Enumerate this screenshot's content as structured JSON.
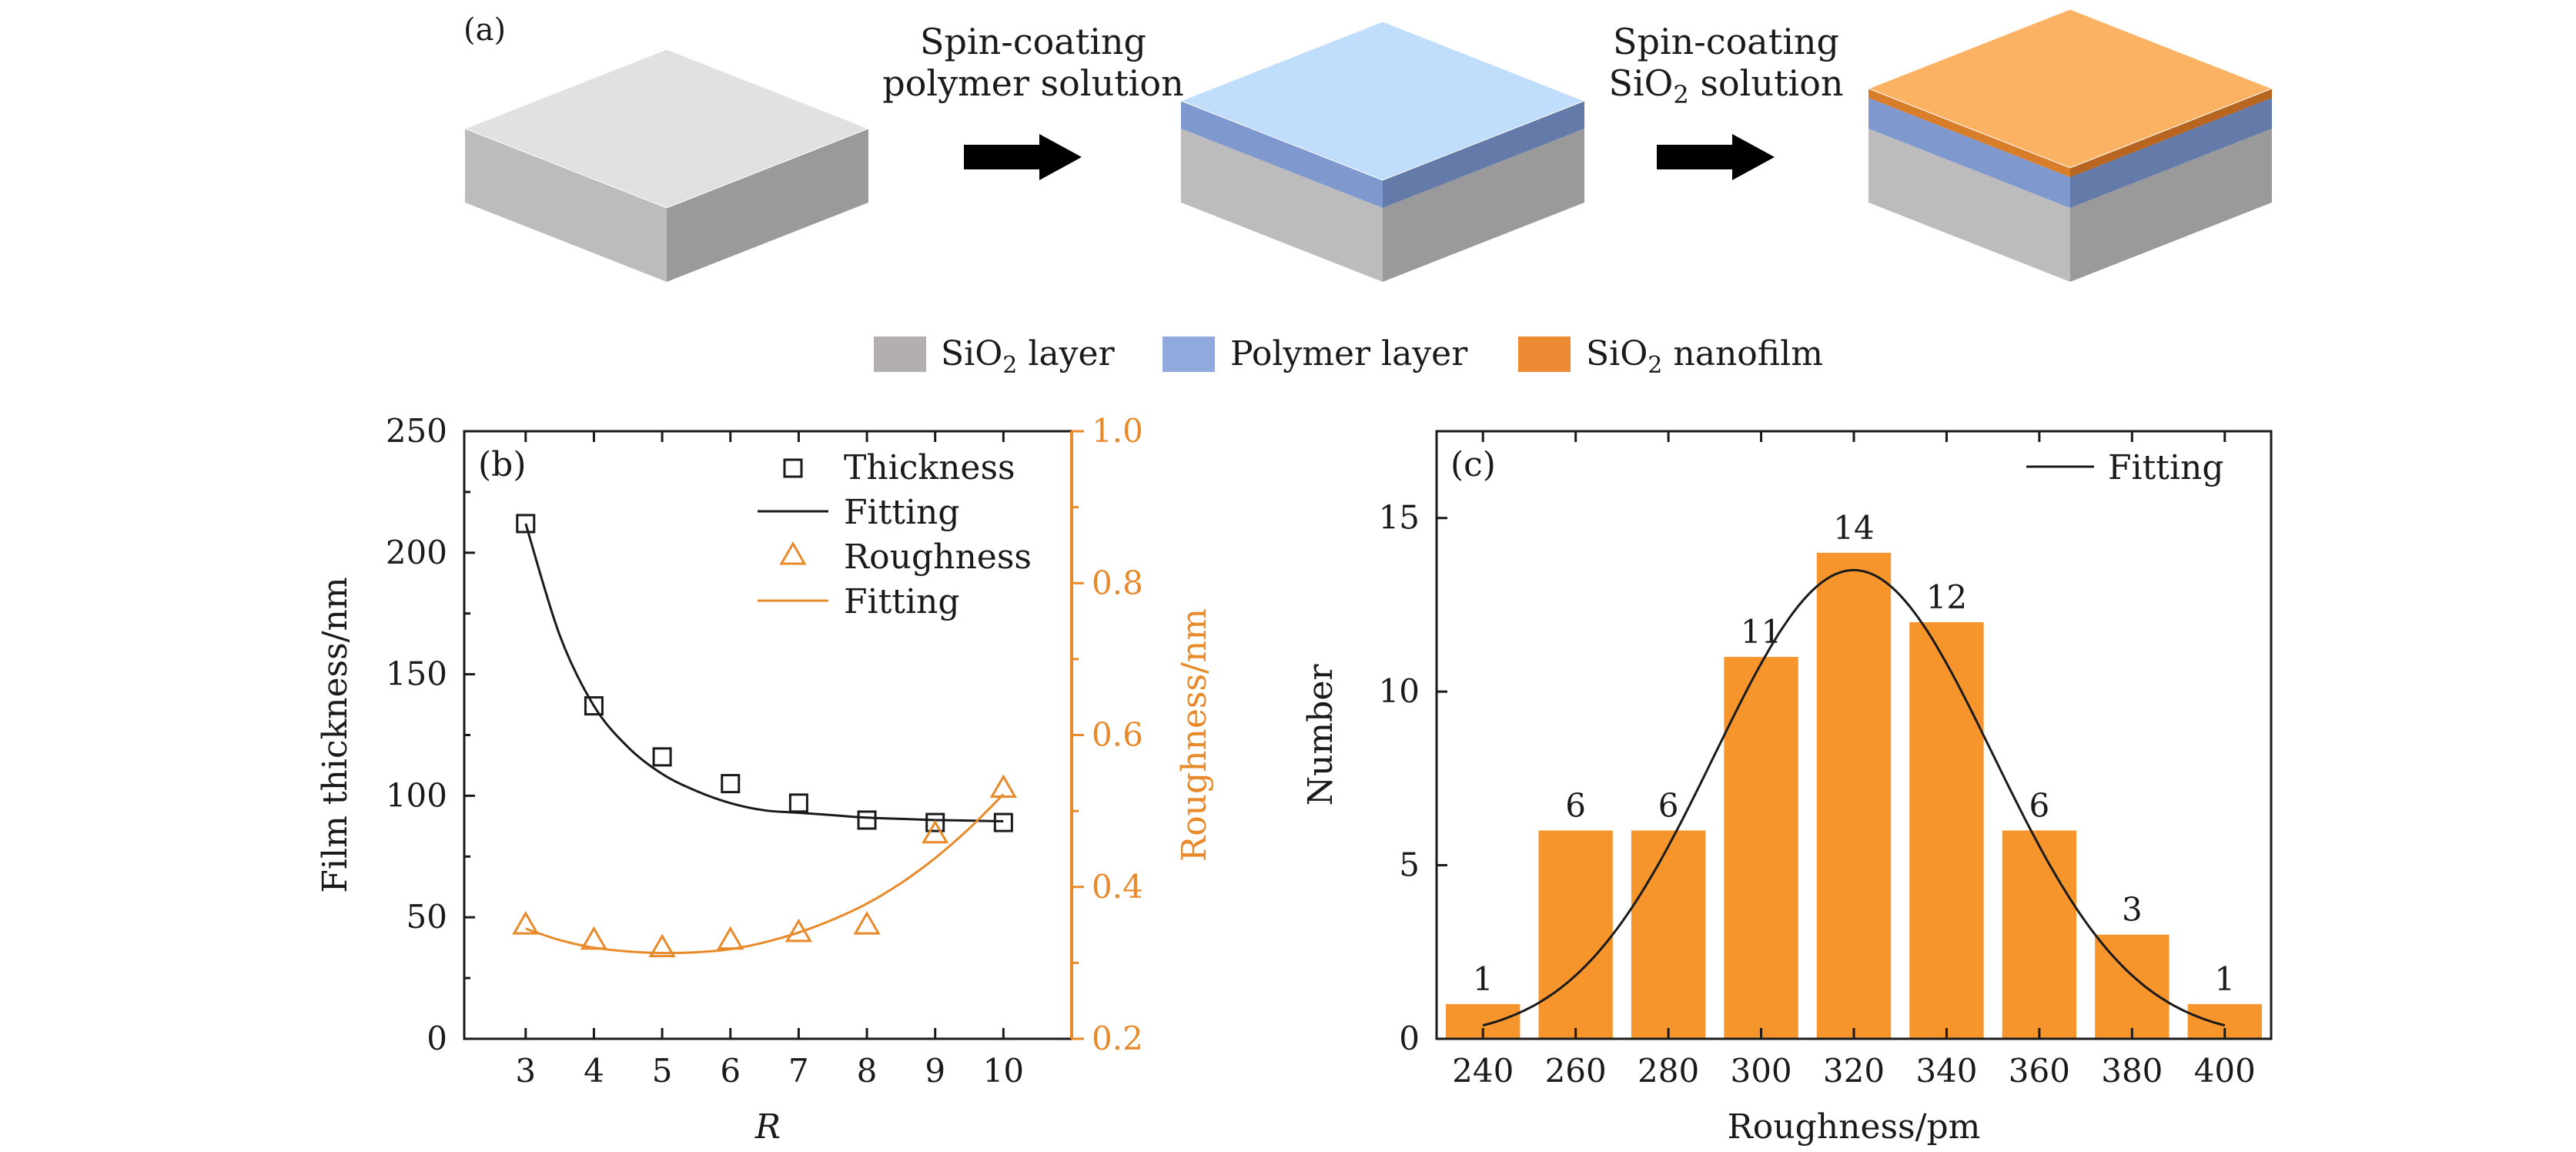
{
  "panel_a": {
    "label": "(a)",
    "step1": {
      "line1": "Spin-coating",
      "line2": "polymer solution"
    },
    "step2": {
      "line1": "Spin-coating",
      "line2_pre": "SiO",
      "line2_sub": "2",
      "line2_post": " solution"
    },
    "legend": [
      {
        "pre": "SiO",
        "sub": "2",
        "post": " layer",
        "color": "#b3afaf"
      },
      {
        "pre": "Polymer layer",
        "sub": "",
        "post": "",
        "color": "#91aade"
      },
      {
        "pre": "SiO",
        "sub": "2",
        "post": " nanofilm",
        "color": "#ee8a33"
      }
    ],
    "colors": {
      "substrate_top": "#e3e0e0",
      "substrate_left": "#bcbcbc",
      "substrate_right": "#9a9a9a",
      "polymer_top": "#c0ddfb",
      "polymer_left": "#7f98ce",
      "polymer_right": "#647aa8",
      "nano_top": "#fbb263",
      "nano_left": "#d87d2a",
      "nano_right": "#b86520",
      "arrow": "#000000"
    }
  },
  "chart_data": [
    {
      "type": "scatter",
      "panel_label": "(b)",
      "xlabel": "R",
      "ylabel": "Film thickness/nm",
      "ylabel_right": "Roughness/nm",
      "xlim": [
        2.1,
        11.0
      ],
      "ylim": [
        0,
        250
      ],
      "ylim_right": [
        0.2,
        1.0
      ],
      "x_ticks": [
        3,
        4,
        5,
        6,
        7,
        8,
        9,
        10
      ],
      "y_ticks": [
        0,
        50,
        100,
        150,
        200,
        250
      ],
      "y_ticks_right": [
        "0.2",
        "0.4",
        "0.6",
        "0.8",
        "1.0"
      ],
      "legend_position": "top-right",
      "series": [
        {
          "name": "Thickness",
          "axis": "left",
          "marker": "square",
          "color": "#1a1a1a",
          "x": [
            3,
            4,
            5,
            6,
            7,
            8,
            9,
            10
          ],
          "y": [
            212,
            137,
            116,
            105,
            97,
            90,
            89,
            89
          ]
        },
        {
          "name": "Fitting",
          "axis": "left",
          "style": "line",
          "color": "#1a1a1a",
          "x": [
            3,
            3.5,
            4,
            4.5,
            5,
            5.5,
            6,
            6.5,
            7,
            7.5,
            8,
            8.5,
            9,
            9.5,
            10
          ],
          "y": [
            212,
            166,
            137,
            120,
            109,
            102,
            97,
            94,
            93,
            92,
            91,
            90.5,
            90,
            89.8,
            89.5
          ]
        },
        {
          "name": "Roughness",
          "axis": "right",
          "marker": "triangle",
          "color": "#e8892a",
          "x": [
            3,
            4,
            5,
            6,
            7,
            8,
            9,
            10
          ],
          "y": [
            0.35,
            0.33,
            0.32,
            0.33,
            0.34,
            0.35,
            0.47,
            0.53
          ]
        },
        {
          "name": "Fitting",
          "axis": "right",
          "style": "line",
          "color": "#e8892a",
          "x": [
            3,
            3.5,
            4,
            4.5,
            5,
            5.5,
            6,
            6.5,
            7,
            7.5,
            8,
            8.5,
            9,
            9.5,
            10
          ],
          "y": [
            0.345,
            0.33,
            0.32,
            0.315,
            0.313,
            0.314,
            0.318,
            0.327,
            0.34,
            0.357,
            0.378,
            0.405,
            0.438,
            0.477,
            0.522
          ]
        }
      ]
    },
    {
      "type": "bar",
      "panel_label": "(c)",
      "xlabel": "Roughness/pm",
      "ylabel": "Number",
      "xlim": [
        230,
        410
      ],
      "ylim": [
        0,
        17.5
      ],
      "x_ticks": [
        240,
        260,
        280,
        300,
        320,
        340,
        360,
        380,
        400
      ],
      "y_ticks": [
        0,
        5,
        10,
        15
      ],
      "legend_position": "top-right",
      "bar_color": "#f7952d",
      "categories": [
        240,
        260,
        280,
        300,
        320,
        340,
        360,
        380,
        400
      ],
      "values": [
        1,
        6,
        6,
        11,
        14,
        12,
        6,
        3,
        1
      ],
      "data_labels": [
        "1",
        "6",
        "6",
        "11",
        "14",
        "12",
        "6",
        "3",
        "1"
      ],
      "fit": {
        "name": "Fitting",
        "mean": 320,
        "sigma": 30,
        "amplitude": 13.5,
        "x_range": [
          240,
          400
        ],
        "color": "#1a1a1a"
      }
    }
  ]
}
